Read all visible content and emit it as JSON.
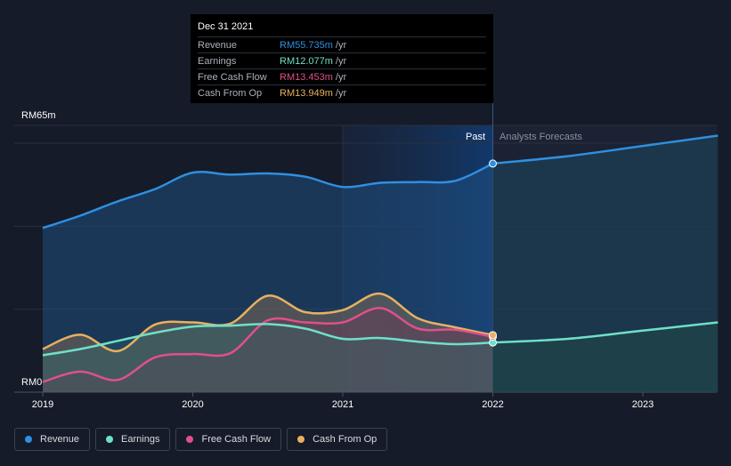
{
  "tooltip": {
    "date": "Dec 31 2021",
    "rows": [
      {
        "label": "Revenue",
        "value": "RM55.735m",
        "unit": "/yr",
        "color": "#2f8fe0"
      },
      {
        "label": "Earnings",
        "value": "RM12.077m",
        "unit": "/yr",
        "color": "#6ee0c9"
      },
      {
        "label": "Free Cash Flow",
        "value": "RM13.453m",
        "unit": "/yr",
        "color": "#e0508a"
      },
      {
        "label": "Cash From Op",
        "value": "RM13.949m",
        "unit": "/yr",
        "color": "#e8b060"
      }
    ]
  },
  "legend": [
    {
      "label": "Revenue",
      "color": "#2f8fe0"
    },
    {
      "label": "Earnings",
      "color": "#6ee0c9"
    },
    {
      "label": "Free Cash Flow",
      "color": "#e0508a"
    },
    {
      "label": "Cash From Op",
      "color": "#e8b060"
    }
  ],
  "chart_data": {
    "type": "area",
    "y_top_label": "RM65m",
    "y_bottom_label": "RM0",
    "ylim": [
      0,
      65
    ],
    "xlim": [
      2019,
      2023.5
    ],
    "x_ticks": [
      "2019",
      "2020",
      "2021",
      "2022",
      "2023"
    ],
    "past_label": "Past",
    "forecast_label": "Analysts Forecasts",
    "divider_x": 2022,
    "highlight_start": 2021,
    "grid": true,
    "series": [
      {
        "name": "Revenue",
        "color": "#2f8fe0",
        "points": [
          [
            2019,
            40
          ],
          [
            2019.25,
            43
          ],
          [
            2019.5,
            46.5
          ],
          [
            2019.75,
            49.5
          ],
          [
            2020,
            53.5
          ],
          [
            2020.25,
            53
          ],
          [
            2020.5,
            53.3
          ],
          [
            2020.75,
            52.5
          ],
          [
            2021,
            50
          ],
          [
            2021.25,
            51
          ],
          [
            2021.5,
            51.2
          ],
          [
            2021.75,
            51.5
          ],
          [
            2022,
            55.7
          ]
        ],
        "forecast": [
          [
            2022,
            55.7
          ],
          [
            2022.5,
            57.5
          ],
          [
            2023,
            60
          ],
          [
            2023.5,
            62.5
          ]
        ]
      },
      {
        "name": "Earnings",
        "color": "#6ee0c9",
        "points": [
          [
            2019,
            9
          ],
          [
            2019.25,
            10.5
          ],
          [
            2019.5,
            12.5
          ],
          [
            2019.75,
            14.5
          ],
          [
            2020,
            16
          ],
          [
            2020.25,
            16.2
          ],
          [
            2020.5,
            16.6
          ],
          [
            2020.75,
            15.5
          ],
          [
            2021,
            13
          ],
          [
            2021.25,
            13.2
          ],
          [
            2021.5,
            12.3
          ],
          [
            2021.75,
            11.7
          ],
          [
            2022,
            12.1
          ]
        ],
        "forecast": [
          [
            2022,
            12.1
          ],
          [
            2022.5,
            13
          ],
          [
            2023,
            15
          ],
          [
            2023.5,
            17
          ]
        ]
      },
      {
        "name": "Free Cash Flow",
        "color": "#e0508a",
        "points": [
          [
            2019,
            2.5
          ],
          [
            2019.25,
            5
          ],
          [
            2019.5,
            3
          ],
          [
            2019.75,
            8.5
          ],
          [
            2020,
            9.3
          ],
          [
            2020.25,
            9.5
          ],
          [
            2020.5,
            17.5
          ],
          [
            2020.75,
            17
          ],
          [
            2021,
            17
          ],
          [
            2021.25,
            20.5
          ],
          [
            2021.5,
            15.5
          ],
          [
            2021.75,
            15.2
          ],
          [
            2022,
            13.5
          ]
        ]
      },
      {
        "name": "Cash From Op",
        "color": "#e8b060",
        "points": [
          [
            2019,
            10.5
          ],
          [
            2019.25,
            14
          ],
          [
            2019.5,
            10
          ],
          [
            2019.75,
            16.5
          ],
          [
            2020,
            17
          ],
          [
            2020.25,
            16.7
          ],
          [
            2020.5,
            23.5
          ],
          [
            2020.75,
            19.5
          ],
          [
            2021,
            20
          ],
          [
            2021.25,
            24
          ],
          [
            2021.5,
            18
          ],
          [
            2021.75,
            15.8
          ],
          [
            2022,
            13.9
          ]
        ]
      }
    ]
  }
}
